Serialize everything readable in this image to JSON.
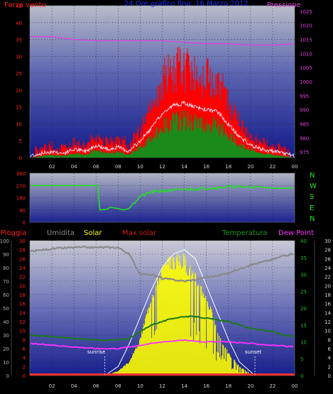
{
  "colors": {
    "wind": "#ff1a1a",
    "gust_fill": "#ff0000",
    "wind_avg": "#e8e8ff",
    "wind_green": "#1a8a1a",
    "pressure": "#e040e0",
    "direction": "#22e022",
    "humidity": "#8a8a8a",
    "solar": "#ffff00",
    "max_solar": "#ffffff",
    "temperature": "#1a7a1a",
    "dew_point": "#ff30ff",
    "rain": "#ff3030",
    "axis_red": "#ff2020",
    "axis_green": "#20c020",
    "axis_grey": "#b0b0b0"
  },
  "top": {
    "left_title": "Forza vento",
    "center_title": "24 Ore grafico fino: 16 Marzo 2012",
    "right_title": "Pressione"
  },
  "middle": {
    "compass": [
      "N",
      "W",
      "S",
      "E",
      "N"
    ]
  },
  "bottom": {
    "legend": {
      "rain": "Pioggia",
      "humidity": "Umidita",
      "solar": "Solar",
      "max_solar": "Max solar",
      "temperature": "Temperatura",
      "dew_point": "Dew Point"
    },
    "sunrise": "sunrise",
    "sunset": "sunset"
  },
  "chart_data": [
    {
      "type": "area",
      "name": "wind_pressure",
      "x_ticks": [
        "02",
        "04",
        "06",
        "08",
        "10",
        "12",
        "14",
        "16",
        "18",
        "20",
        "22",
        "00"
      ],
      "y_left_ticks": [
        "0",
        "5",
        "10",
        "15",
        "20",
        "25",
        "30",
        "35",
        "40",
        "45"
      ],
      "y_left_lim": [
        0,
        45
      ],
      "y_right_ticks": [
        "975",
        "980",
        "985",
        "990",
        "995",
        "1000",
        "1005",
        "1010",
        "1015",
        "1020",
        "1025"
      ],
      "y_right_lim": [
        973,
        1027
      ],
      "grid": true,
      "series": [
        {
          "name": "Forza vento",
          "x": [
            0,
            1,
            2,
            3,
            4,
            5,
            6,
            7,
            8,
            9,
            10,
            11,
            12,
            13,
            14,
            15,
            16,
            17,
            18,
            19,
            20,
            21,
            22,
            23,
            24
          ],
          "values": [
            0,
            1,
            2,
            1,
            3,
            2,
            5,
            3,
            4,
            2,
            7,
            13,
            20,
            24,
            25,
            23,
            22,
            21,
            15,
            9,
            5,
            3,
            2,
            1,
            0
          ]
        },
        {
          "name": "Pressione",
          "x": [
            0,
            2,
            4,
            6,
            8,
            10,
            12,
            14,
            16,
            18,
            20,
            22,
            24
          ],
          "values": [
            1016,
            1016,
            1015,
            1014.5,
            1014.5,
            1014.5,
            1014.5,
            1014,
            1013.5,
            1013.5,
            1013,
            1013,
            1013.5
          ]
        }
      ]
    },
    {
      "type": "line",
      "name": "wind_direction",
      "y_ticks": [
        "0",
        "90",
        "180",
        "270",
        "360"
      ],
      "ylim": [
        0,
        360
      ],
      "grid": true,
      "series": [
        {
          "name": "direction",
          "x": [
            0,
            6.2,
            6.3,
            7,
            7.3,
            8,
            8.5,
            9,
            9.3,
            10,
            11,
            12,
            14,
            16,
            18,
            20,
            22,
            24
          ],
          "values": [
            270,
            270,
            90,
            95,
            110,
            100,
            90,
            100,
            130,
            190,
            220,
            230,
            240,
            250,
            260,
            260,
            250,
            250
          ]
        }
      ]
    },
    {
      "type": "line",
      "name": "meteo",
      "y_left_humidity_ticks": [
        "0",
        "10",
        "20",
        "30",
        "40",
        "50",
        "60",
        "70",
        "80",
        "90",
        "100"
      ],
      "y_left_rain_ticks": [
        "0",
        "2",
        "4",
        "6",
        "8",
        "10",
        "12",
        "14",
        "16",
        "18",
        "20",
        "22",
        "24",
        "26",
        "28",
        "30"
      ],
      "y_right_temp_ticks": [
        "0",
        "5",
        "10",
        "15",
        "20",
        "25",
        "30",
        "35",
        "40"
      ],
      "y_right_solar_ticks": [
        "0",
        "2",
        "4",
        "6",
        "8",
        "10",
        "12",
        "14",
        "16",
        "18",
        "20",
        "22",
        "24",
        "26",
        "28",
        "30"
      ],
      "grid": true,
      "series": [
        {
          "name": "Umidita",
          "x": [
            0,
            2,
            4,
            6,
            8,
            9,
            10,
            11,
            12,
            13,
            14,
            15,
            16,
            17,
            18,
            19,
            20,
            21,
            22,
            23,
            24
          ],
          "values": [
            92,
            94,
            95,
            95,
            95,
            90,
            75,
            75,
            72,
            71,
            70,
            71,
            73,
            74,
            76,
            79,
            82,
            84,
            86,
            89,
            90
          ]
        },
        {
          "name": "Temperatura",
          "x": [
            0,
            2,
            4,
            6,
            8,
            9,
            10,
            11,
            12,
            13,
            14,
            15,
            16,
            17,
            18,
            19,
            20,
            21,
            22,
            23,
            24
          ],
          "values": [
            12,
            11.5,
            11,
            10.5,
            10.5,
            11,
            13,
            15,
            16,
            17,
            17.5,
            17.5,
            17,
            16.5,
            16,
            15,
            14,
            13.5,
            13,
            12,
            11.5
          ]
        },
        {
          "name": "Dew Point",
          "x": [
            0,
            2,
            4,
            6,
            8,
            10,
            12,
            14,
            16,
            18,
            20,
            22,
            24
          ],
          "values": [
            9.5,
            9,
            8.5,
            8,
            8,
            9,
            10,
            10.5,
            10,
            10,
            9.5,
            9,
            8.5
          ]
        },
        {
          "name": "Max solar",
          "x": [
            6.8,
            8,
            9,
            10,
            11,
            12,
            13,
            14,
            15,
            16,
            17,
            18,
            19,
            20.4
          ],
          "values": [
            0,
            2,
            7,
            13,
            19,
            24,
            27,
            28,
            26,
            20,
            14,
            8,
            3,
            0
          ]
        },
        {
          "name": "Solar",
          "x": [
            6.8,
            8,
            9,
            10,
            11,
            12,
            13,
            14,
            15,
            16,
            17,
            18,
            19,
            20.4
          ],
          "values": [
            0,
            1,
            3,
            8,
            18,
            24,
            26,
            26,
            22,
            18,
            10,
            5,
            2,
            0
          ]
        },
        {
          "name": "Pioggia",
          "x": [
            0,
            24
          ],
          "values": [
            0,
            0
          ]
        }
      ],
      "sunrise_hour": 6.8,
      "sunset_hour": 20.4
    }
  ]
}
